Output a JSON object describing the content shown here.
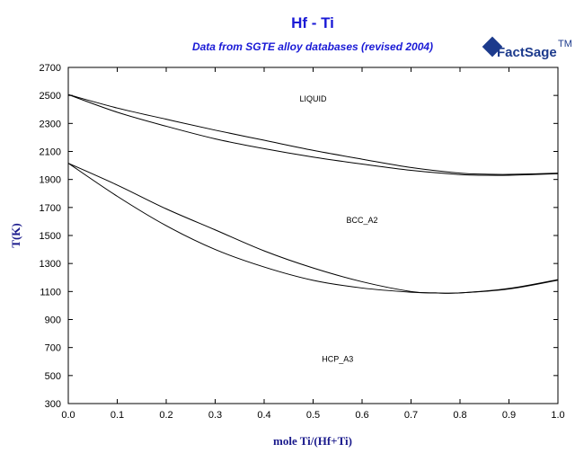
{
  "logo": {
    "text": "FactSage",
    "mark": "TM"
  },
  "chart_data": {
    "type": "line",
    "title": "Hf - Ti",
    "subtitle": "Data from SGTE alloy databases (revised 2004)",
    "xlabel": "mole Ti/(Hf+Ti)",
    "ylabel": "T(K)",
    "xlim": [
      0,
      1
    ],
    "ylim": [
      300,
      2700
    ],
    "xticks": [
      "0.0",
      "0.1",
      "0.2",
      "0.3",
      "0.4",
      "0.5",
      "0.6",
      "0.7",
      "0.8",
      "0.9",
      "1.0"
    ],
    "yticks": [
      "300",
      "500",
      "700",
      "900",
      "1100",
      "1300",
      "1500",
      "1700",
      "1900",
      "2100",
      "2300",
      "2500",
      "2700"
    ],
    "grid": false,
    "regions": [
      {
        "label": "LIQUID",
        "x": 0.5,
        "y": 2455
      },
      {
        "label": "BCC_A2",
        "x": 0.6,
        "y": 1590
      },
      {
        "label": "HCP_A3",
        "x": 0.55,
        "y": 600
      }
    ],
    "series": [
      {
        "x": [
          0,
          0.1,
          0.2,
          0.3,
          0.4,
          0.5,
          0.6,
          0.7,
          0.8,
          0.85,
          0.9,
          1.0
        ],
        "y": [
          2506,
          2410,
          2330,
          2252,
          2180,
          2108,
          2045,
          1985,
          1945,
          1938,
          1936,
          1945
        ]
      },
      {
        "x": [
          0,
          0.1,
          0.2,
          0.3,
          0.4,
          0.5,
          0.6,
          0.7,
          0.8,
          0.85,
          0.9,
          1.0
        ],
        "y": [
          2506,
          2380,
          2280,
          2190,
          2120,
          2060,
          2010,
          1965,
          1935,
          1930,
          1930,
          1941
        ]
      },
      {
        "x": [
          0,
          0.1,
          0.2,
          0.3,
          0.4,
          0.5,
          0.6,
          0.7,
          0.75,
          0.8,
          0.9,
          1.0
        ],
        "y": [
          2016,
          1860,
          1690,
          1540,
          1390,
          1268,
          1170,
          1100,
          1090,
          1090,
          1122,
          1185
        ]
      },
      {
        "x": [
          0,
          0.1,
          0.2,
          0.3,
          0.4,
          0.5,
          0.6,
          0.7,
          0.75,
          0.8,
          0.9,
          1.0
        ],
        "y": [
          2016,
          1780,
          1570,
          1400,
          1275,
          1180,
          1125,
          1095,
          1090,
          1090,
          1118,
          1181
        ]
      }
    ]
  }
}
